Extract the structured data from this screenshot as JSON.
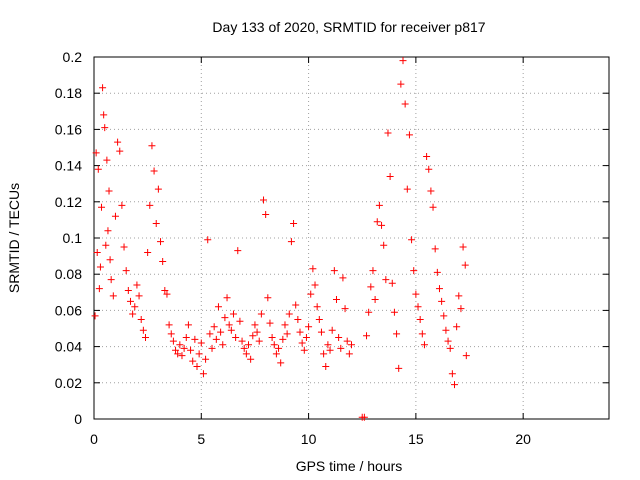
{
  "chart_data": {
    "type": "scatter",
    "title": "Day 133 of 2020, SRMTID for receiver p817",
    "xlabel": "GPS time / hours",
    "ylabel": "SRMTID / TECUs",
    "xlim": [
      0,
      24
    ],
    "ylim": [
      0,
      0.2
    ],
    "xticks": [
      0,
      5,
      10,
      15,
      20
    ],
    "xtick_labels": [
      "0",
      "5",
      "10",
      "15",
      "20"
    ],
    "yticks": [
      0,
      0.02,
      0.04,
      0.06,
      0.08,
      0.1,
      0.12,
      0.14,
      0.16,
      0.18,
      0.2
    ],
    "ytick_labels": [
      "0",
      "0.02",
      "0.04",
      "0.06",
      "0.08",
      "0.1",
      "0.12",
      "0.14",
      "0.16",
      "0.18",
      "0.2"
    ],
    "grid": true,
    "marker": "+",
    "color": "#ff0000",
    "series": [
      {
        "name": "SRMTID",
        "points": [
          [
            0.05,
            0.057
          ],
          [
            0.1,
            0.147
          ],
          [
            0.15,
            0.092
          ],
          [
            0.2,
            0.138
          ],
          [
            0.25,
            0.072
          ],
          [
            0.3,
            0.084
          ],
          [
            0.35,
            0.117
          ],
          [
            0.4,
            0.183
          ],
          [
            0.45,
            0.168
          ],
          [
            0.5,
            0.161
          ],
          [
            0.55,
            0.096
          ],
          [
            0.6,
            0.143
          ],
          [
            0.65,
            0.104
          ],
          [
            0.7,
            0.126
          ],
          [
            0.75,
            0.088
          ],
          [
            0.8,
            0.077
          ],
          [
            0.9,
            0.068
          ],
          [
            1.0,
            0.112
          ],
          [
            1.1,
            0.153
          ],
          [
            1.2,
            0.148
          ],
          [
            1.3,
            0.118
          ],
          [
            1.4,
            0.095
          ],
          [
            1.5,
            0.082
          ],
          [
            1.6,
            0.071
          ],
          [
            1.7,
            0.065
          ],
          [
            1.8,
            0.058
          ],
          [
            1.9,
            0.062
          ],
          [
            2.0,
            0.074
          ],
          [
            2.1,
            0.068
          ],
          [
            2.2,
            0.055
          ],
          [
            2.3,
            0.049
          ],
          [
            2.4,
            0.045
          ],
          [
            2.5,
            0.092
          ],
          [
            2.6,
            0.118
          ],
          [
            2.7,
            0.151
          ],
          [
            2.8,
            0.137
          ],
          [
            2.9,
            0.108
          ],
          [
            3.0,
            0.127
          ],
          [
            3.1,
            0.098
          ],
          [
            3.2,
            0.087
          ],
          [
            3.3,
            0.071
          ],
          [
            3.4,
            0.069
          ],
          [
            3.5,
            0.052
          ],
          [
            3.6,
            0.047
          ],
          [
            3.7,
            0.043
          ],
          [
            3.8,
            0.038
          ],
          [
            3.9,
            0.036
          ],
          [
            4.0,
            0.041
          ],
          [
            4.1,
            0.035
          ],
          [
            4.2,
            0.039
          ],
          [
            4.3,
            0.045
          ],
          [
            4.4,
            0.052
          ],
          [
            4.5,
            0.038
          ],
          [
            4.6,
            0.032
          ],
          [
            4.7,
            0.044
          ],
          [
            4.8,
            0.029
          ],
          [
            4.9,
            0.036
          ],
          [
            5.0,
            0.042
          ],
          [
            5.1,
            0.025
          ],
          [
            5.2,
            0.033
          ],
          [
            5.3,
            0.099
          ],
          [
            5.4,
            0.047
          ],
          [
            5.5,
            0.039
          ],
          [
            5.6,
            0.051
          ],
          [
            5.7,
            0.044
          ],
          [
            5.8,
            0.062
          ],
          [
            5.9,
            0.048
          ],
          [
            6.0,
            0.041
          ],
          [
            6.1,
            0.056
          ],
          [
            6.2,
            0.067
          ],
          [
            6.3,
            0.052
          ],
          [
            6.4,
            0.049
          ],
          [
            6.5,
            0.058
          ],
          [
            6.6,
            0.045
          ],
          [
            6.7,
            0.093
          ],
          [
            6.8,
            0.054
          ],
          [
            6.9,
            0.043
          ],
          [
            7.0,
            0.039
          ],
          [
            7.1,
            0.036
          ],
          [
            7.2,
            0.041
          ],
          [
            7.3,
            0.033
          ],
          [
            7.4,
            0.046
          ],
          [
            7.5,
            0.052
          ],
          [
            7.6,
            0.048
          ],
          [
            7.7,
            0.043
          ],
          [
            7.8,
            0.058
          ],
          [
            7.9,
            0.121
          ],
          [
            8.0,
            0.113
          ],
          [
            8.1,
            0.067
          ],
          [
            8.2,
            0.053
          ],
          [
            8.3,
            0.045
          ],
          [
            8.4,
            0.041
          ],
          [
            8.5,
            0.036
          ],
          [
            8.6,
            0.039
          ],
          [
            8.7,
            0.031
          ],
          [
            8.8,
            0.044
          ],
          [
            8.9,
            0.052
          ],
          [
            9.0,
            0.047
          ],
          [
            9.1,
            0.058
          ],
          [
            9.2,
            0.098
          ],
          [
            9.3,
            0.108
          ],
          [
            9.4,
            0.063
          ],
          [
            9.5,
            0.055
          ],
          [
            9.6,
            0.048
          ],
          [
            9.7,
            0.042
          ],
          [
            9.8,
            0.038
          ],
          [
            9.9,
            0.045
          ],
          [
            10.0,
            0.051
          ],
          [
            10.1,
            0.069
          ],
          [
            10.2,
            0.083
          ],
          [
            10.3,
            0.074
          ],
          [
            10.4,
            0.062
          ],
          [
            10.5,
            0.055
          ],
          [
            10.6,
            0.048
          ],
          [
            10.7,
            0.036
          ],
          [
            10.8,
            0.029
          ],
          [
            10.9,
            0.041
          ],
          [
            11.0,
            0.038
          ],
          [
            11.1,
            0.049
          ],
          [
            11.2,
            0.082
          ],
          [
            11.3,
            0.066
          ],
          [
            11.4,
            0.045
          ],
          [
            11.5,
            0.039
          ],
          [
            11.6,
            0.078
          ],
          [
            11.7,
            0.061
          ],
          [
            11.8,
            0.043
          ],
          [
            11.9,
            0.036
          ],
          [
            12.0,
            0.041
          ],
          [
            12.5,
            0.001
          ],
          [
            12.6,
            0.001
          ],
          [
            12.7,
            0.046
          ],
          [
            12.8,
            0.059
          ],
          [
            12.9,
            0.073
          ],
          [
            13.0,
            0.082
          ],
          [
            13.1,
            0.066
          ],
          [
            13.2,
            0.109
          ],
          [
            13.3,
            0.118
          ],
          [
            13.4,
            0.107
          ],
          [
            13.5,
            0.096
          ],
          [
            13.6,
            0.077
          ],
          [
            13.7,
            0.158
          ],
          [
            13.8,
            0.134
          ],
          [
            13.9,
            0.075
          ],
          [
            14.0,
            0.059
          ],
          [
            14.1,
            0.047
          ],
          [
            14.2,
            0.028
          ],
          [
            14.3,
            0.185
          ],
          [
            14.4,
            0.198
          ],
          [
            14.5,
            0.174
          ],
          [
            14.6,
            0.127
          ],
          [
            14.7,
            0.157
          ],
          [
            14.8,
            0.099
          ],
          [
            14.9,
            0.082
          ],
          [
            15.0,
            0.069
          ],
          [
            15.1,
            0.062
          ],
          [
            15.2,
            0.055
          ],
          [
            15.3,
            0.047
          ],
          [
            15.4,
            0.041
          ],
          [
            15.5,
            0.145
          ],
          [
            15.6,
            0.138
          ],
          [
            15.7,
            0.126
          ],
          [
            15.8,
            0.117
          ],
          [
            15.9,
            0.094
          ],
          [
            16.0,
            0.081
          ],
          [
            16.1,
            0.072
          ],
          [
            16.2,
            0.065
          ],
          [
            16.3,
            0.057
          ],
          [
            16.4,
            0.049
          ],
          [
            16.5,
            0.043
          ],
          [
            16.6,
            0.039
          ],
          [
            16.7,
            0.025
          ],
          [
            16.8,
            0.019
          ],
          [
            16.9,
            0.051
          ],
          [
            17.0,
            0.068
          ],
          [
            17.1,
            0.061
          ],
          [
            17.2,
            0.095
          ],
          [
            17.3,
            0.085
          ],
          [
            17.35,
            0.035
          ]
        ]
      }
    ]
  }
}
